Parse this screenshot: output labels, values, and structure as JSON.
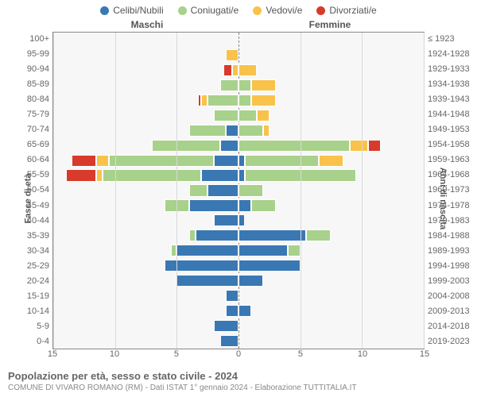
{
  "legend": [
    {
      "label": "Celibi/Nubili",
      "color": "#3a78b3"
    },
    {
      "label": "Coniugati/e",
      "color": "#a8d18b"
    },
    {
      "label": "Vedovi/e",
      "color": "#f9c24a"
    },
    {
      "label": "Divorziati/e",
      "color": "#d83a2b"
    }
  ],
  "side_headers": {
    "left": "Maschi",
    "right": "Femmine"
  },
  "axis_titles": {
    "left": "Fasce di età",
    "right": "Anni di nascita"
  },
  "xaxis": {
    "max": 15,
    "ticks": [
      15,
      10,
      5,
      0,
      5,
      10,
      15
    ]
  },
  "colors": {
    "celibi": "#3a78b3",
    "coniugati": "#a8d18b",
    "vedovi": "#f9c24a",
    "divorziati": "#d83a2b",
    "grid": "#d9d9d9",
    "plot_bg": "#f7f7f7"
  },
  "rows": [
    {
      "age": "100+",
      "birth": "≤ 1923",
      "m": {
        "cel": 0,
        "con": 0,
        "ved": 0,
        "div": 0
      },
      "f": {
        "cel": 0,
        "con": 0,
        "ved": 0,
        "div": 0
      }
    },
    {
      "age": "95-99",
      "birth": "1924-1928",
      "m": {
        "cel": 0,
        "con": 0,
        "ved": 1,
        "div": 0
      },
      "f": {
        "cel": 0,
        "con": 0,
        "ved": 0,
        "div": 0
      }
    },
    {
      "age": "90-94",
      "birth": "1929-1933",
      "m": {
        "cel": 0,
        "con": 0,
        "ved": 0.5,
        "div": 0.7
      },
      "f": {
        "cel": 0,
        "con": 0,
        "ved": 1.5,
        "div": 0
      }
    },
    {
      "age": "85-89",
      "birth": "1934-1938",
      "m": {
        "cel": 0,
        "con": 1.5,
        "ved": 0,
        "div": 0
      },
      "f": {
        "cel": 0,
        "con": 1,
        "ved": 2,
        "div": 0
      }
    },
    {
      "age": "80-84",
      "birth": "1939-1943",
      "m": {
        "cel": 0,
        "con": 2.5,
        "ved": 0.5,
        "div": 0.3
      },
      "f": {
        "cel": 0,
        "con": 1,
        "ved": 2,
        "div": 0
      }
    },
    {
      "age": "75-79",
      "birth": "1944-1948",
      "m": {
        "cel": 0,
        "con": 2,
        "ved": 0,
        "div": 0
      },
      "f": {
        "cel": 0,
        "con": 1.5,
        "ved": 1,
        "div": 0
      }
    },
    {
      "age": "70-74",
      "birth": "1949-1953",
      "m": {
        "cel": 1,
        "con": 3,
        "ved": 0,
        "div": 0
      },
      "f": {
        "cel": 0,
        "con": 2,
        "ved": 0.5,
        "div": 0
      }
    },
    {
      "age": "65-69",
      "birth": "1954-1958",
      "m": {
        "cel": 1.5,
        "con": 5.5,
        "ved": 0,
        "div": 0
      },
      "f": {
        "cel": 0,
        "con": 9,
        "ved": 1.5,
        "div": 1
      }
    },
    {
      "age": "60-64",
      "birth": "1959-1963",
      "m": {
        "cel": 2,
        "con": 8.5,
        "ved": 1,
        "div": 2
      },
      "f": {
        "cel": 0.5,
        "con": 6,
        "ved": 2,
        "div": 0
      }
    },
    {
      "age": "55-59",
      "birth": "1964-1968",
      "m": {
        "cel": 3,
        "con": 8,
        "ved": 0.5,
        "div": 2.5
      },
      "f": {
        "cel": 0.5,
        "con": 9,
        "ved": 0,
        "div": 0
      }
    },
    {
      "age": "50-54",
      "birth": "1969-1973",
      "m": {
        "cel": 2.5,
        "con": 1.5,
        "ved": 0,
        "div": 0
      },
      "f": {
        "cel": 0,
        "con": 2,
        "ved": 0,
        "div": 0
      }
    },
    {
      "age": "45-49",
      "birth": "1974-1978",
      "m": {
        "cel": 4,
        "con": 2,
        "ved": 0,
        "div": 0
      },
      "f": {
        "cel": 1,
        "con": 2,
        "ved": 0,
        "div": 0
      }
    },
    {
      "age": "40-44",
      "birth": "1979-1983",
      "m": {
        "cel": 2,
        "con": 0,
        "ved": 0,
        "div": 0
      },
      "f": {
        "cel": 0.5,
        "con": 0,
        "ved": 0,
        "div": 0
      }
    },
    {
      "age": "35-39",
      "birth": "1984-1988",
      "m": {
        "cel": 3.5,
        "con": 0.5,
        "ved": 0,
        "div": 0
      },
      "f": {
        "cel": 5.5,
        "con": 2,
        "ved": 0,
        "div": 0
      }
    },
    {
      "age": "30-34",
      "birth": "1989-1993",
      "m": {
        "cel": 5,
        "con": 0.5,
        "ved": 0,
        "div": 0
      },
      "f": {
        "cel": 4,
        "con": 1,
        "ved": 0,
        "div": 0
      }
    },
    {
      "age": "25-29",
      "birth": "1994-1998",
      "m": {
        "cel": 6,
        "con": 0,
        "ved": 0,
        "div": 0
      },
      "f": {
        "cel": 5,
        "con": 0,
        "ved": 0,
        "div": 0
      }
    },
    {
      "age": "20-24",
      "birth": "1999-2003",
      "m": {
        "cel": 5,
        "con": 0,
        "ved": 0,
        "div": 0
      },
      "f": {
        "cel": 2,
        "con": 0,
        "ved": 0,
        "div": 0
      }
    },
    {
      "age": "15-19",
      "birth": "2004-2008",
      "m": {
        "cel": 1,
        "con": 0,
        "ved": 0,
        "div": 0
      },
      "f": {
        "cel": 0,
        "con": 0,
        "ved": 0,
        "div": 0
      }
    },
    {
      "age": "10-14",
      "birth": "2009-2013",
      "m": {
        "cel": 1,
        "con": 0,
        "ved": 0,
        "div": 0
      },
      "f": {
        "cel": 1,
        "con": 0,
        "ved": 0,
        "div": 0
      }
    },
    {
      "age": "5-9",
      "birth": "2014-2018",
      "m": {
        "cel": 2,
        "con": 0,
        "ved": 0,
        "div": 0
      },
      "f": {
        "cel": 0,
        "con": 0,
        "ved": 0,
        "div": 0
      }
    },
    {
      "age": "0-4",
      "birth": "2019-2023",
      "m": {
        "cel": 1.5,
        "con": 0,
        "ved": 0,
        "div": 0
      },
      "f": {
        "cel": 0,
        "con": 0,
        "ved": 0,
        "div": 0
      }
    }
  ],
  "footer": {
    "title": "Popolazione per età, sesso e stato civile - 2024",
    "sub": "COMUNE DI VIVARO ROMANO (RM) - Dati ISTAT 1° gennaio 2024 - Elaborazione TUTTITALIA.IT"
  }
}
